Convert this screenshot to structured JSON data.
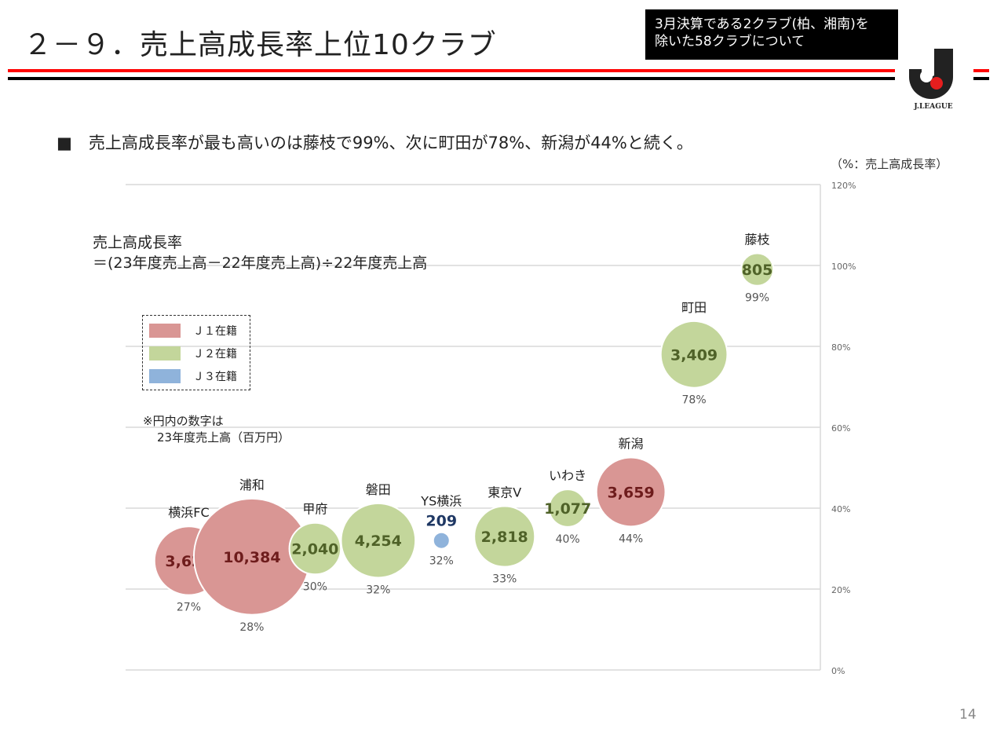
{
  "header": {
    "title": "２－９．売上高成長率上位10クラブ",
    "note_line1": "3月決算である2クラブ(柏、湘南)を",
    "note_line2": "除いた58クラブについて",
    "logo_text": "J.LEAGUE",
    "accent_red": "#ff0000",
    "accent_black": "#000000"
  },
  "bullet": "■　売上高成長率が最も高いのは藤枝で99%、次に町田が78%、新潟が44%と続く。",
  "unit_label": "（%：売上高成長率）",
  "formula": {
    "line1": "売上高成長率",
    "line2": "＝(23年度売上高－22年度売上高)÷22年度売上高"
  },
  "legend": [
    {
      "label": "Ｊ１在籍",
      "color": "#d99694"
    },
    {
      "label": "Ｊ２在籍",
      "color": "#c3d69b"
    },
    {
      "label": "Ｊ３在籍",
      "color": "#8fb3db"
    }
  ],
  "footnote": {
    "line1": "※円内の数字は",
    "line2": "23年度売上高（百万円）"
  },
  "page_number": "14",
  "chart_data": {
    "type": "bubble",
    "ylabel": "（%：売上高成長率）",
    "ylim": [
      0,
      120
    ],
    "yticks": [
      "0%",
      "20%",
      "40%",
      "60%",
      "80%",
      "100%",
      "120%"
    ],
    "grid": true,
    "legend_placement": "top-left",
    "categories": [
      "横浜FC",
      "浦和",
      "甲府",
      "磐田",
      "YS横浜",
      "東京V",
      "いわき",
      "新潟",
      "町田",
      "藤枝"
    ],
    "growth_pct": [
      27,
      28,
      30,
      32,
      32,
      33,
      40,
      44,
      78,
      99
    ],
    "sales_mil_yen": [
      3627,
      10384,
      2040,
      4254,
      209,
      2818,
      1077,
      3659,
      3409,
      805
    ],
    "sales_labels": [
      "3,627",
      "10,384",
      "2,040",
      "4,254",
      "209",
      "2,818",
      "1,077",
      "3,659",
      "3,409",
      "805"
    ],
    "pct_labels": [
      "27%",
      "28%",
      "30%",
      "32%",
      "32%",
      "33%",
      "40%",
      "44%",
      "78%",
      "99%"
    ],
    "division": [
      "J1",
      "J1",
      "J2",
      "J2",
      "J3",
      "J2",
      "J2",
      "J1",
      "J2",
      "J2"
    ],
    "colors": {
      "J1": "#d99694",
      "J2": "#c3d69b",
      "J3": "#8fb3db"
    },
    "text_colors": {
      "J1": "#6e1c1c",
      "J2": "#4f6228",
      "J3": "#1f3864"
    }
  }
}
